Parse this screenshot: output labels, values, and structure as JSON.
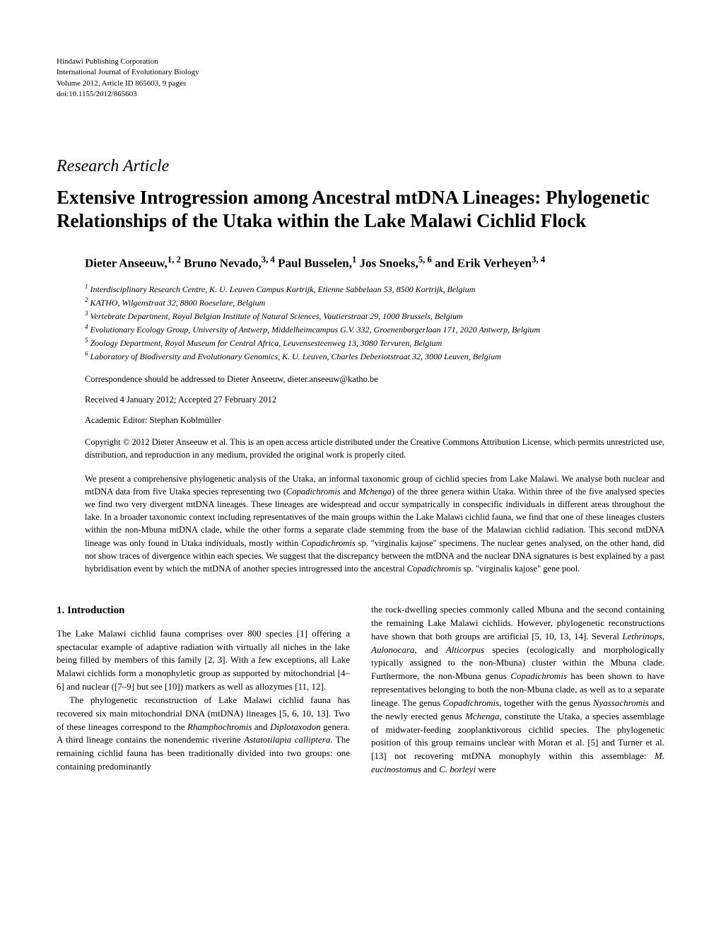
{
  "header": {
    "publisher": "Hindawi Publishing Corporation",
    "journal": "International Journal of Evolutionary Biology",
    "volume": "Volume 2012, Article ID 865603, 9 pages",
    "doi": "doi:10.1155/2012/865603"
  },
  "article_type": "Research Article",
  "title": "Extensive Introgression among Ancestral mtDNA Lineages: Phylogenetic Relationships of the Utaka within the Lake Malawi Cichlid Flock",
  "authors_html": "Dieter Anseeuw,<sup>1, 2</sup> Bruno Nevado,<sup>3, 4</sup> Paul Busselen,<sup>1</sup> Jos Snoeks,<sup>5, 6</sup> and Erik Verheyen<sup>3, 4</sup>",
  "affiliations": [
    "<sup>1</sup> Interdisciplinary Research Centre, K. U. Leuven Campus Kortrijk, Etienne Sabbelaan 53, 8500 Kortrijk, Belgium",
    "<sup>2</sup> KATHO, Wilgenstraat 32, 8800 Roeselare, Belgium",
    "<sup>3</sup> Vertebrate Department, Royal Belgian Institute of Natural Sciences, Vautierstraat 29, 1000 Brussels, Belgium",
    "<sup>4</sup> Evolutionary Ecology Group, University of Antwerp, Middelheimcampus G.V. 332, Groenenborgerlaan 171, 2020 Antwerp, Belgium",
    "<sup>5</sup> Zoology Department, Royal Museum for Central Africa, Leuvensesteenweg 13, 3080 Tervuren, Belgium",
    "<sup>6</sup> Laboratory of Biodiversity and Evolutionary Genomics, K. U. Leuven, Charles Deberiotstraat 32, 3000 Leuven, Belgium"
  ],
  "correspondence": "Correspondence should be addressed to Dieter Anseeuw, dieter.anseeuw@katho.be",
  "received": "Received 4 January 2012; Accepted 27 February 2012",
  "editor": "Academic Editor: Stephan Koblmüller",
  "copyright": "Copyright © 2012 Dieter Anseeuw et al. This is an open access article distributed under the Creative Commons Attribution License, which permits unrestricted use, distribution, and reproduction in any medium, provided the original work is properly cited.",
  "abstract": "We present a comprehensive phylogenetic analysis of the Utaka, an informal taxonomic group of cichlid species from Lake Malawi. We analyse both nuclear and mtDNA data from five Utaka species representing two (<i>Copadichromis</i> and <i>Mchenga</i>) of the three genera within Utaka. Within three of the five analysed species we find two very divergent mtDNA lineages. These lineages are widespread and occur sympatrically in conspecific individuals in different areas throughout the lake. In a broader taxonomic context including representatives of the main groups within the Lake Malawi cichlid fauna, we find that one of these lineages clusters within the non-Mbuna mtDNA clade, while the other forms a separate clade stemming from the base of the Malawian cichlid radiation. This second mtDNA lineage was only found in Utaka individuals, mostly within <i>Copadichromis</i> sp. \"virginalis kajose\" specimens. The nuclear genes analysed, on the other hand, did not show traces of divergence within each species. We suggest that the discrepancy between the mtDNA and the nuclear DNA signatures is best explained by a past hybridisation event by which the mtDNA of another species introgressed into the ancestral <i>Copadichromis</i> sp. \"virginalis kajose\" gene pool.",
  "section_heading": "1. Introduction",
  "column_left": {
    "p1": "The Lake Malawi cichlid fauna comprises over 800 species [1] offering a spectacular example of adaptive radiation with virtually all niches in the lake being filled by members of this family [2, 3]. With a few exceptions, all Lake Malawi cichlids form a monophyletic group as supported by mitochondrial [4–6] and nuclear ([7–9] but see [10]) markers as well as allozymes [11, 12].",
    "p2": "The phylogenetic reconstruction of Lake Malawi cichlid fauna has recovered six main mitochondrial DNA (mtDNA) lineages [5, 6, 10, 13]. Two of these lineages correspond to the <i>Rhamphochromis</i> and <i>Diplotaxodon</i> genera. A third lineage contains the nonendemic riverine <i>Astatotilapia calliptera</i>. The remaining cichlid fauna has been traditionally divided into two groups: one containing predominantly"
  },
  "column_right": {
    "p1": "the rock-dwelling species commonly called Mbuna and the second containing the remaining Lake Malawi cichlids. However, phylogenetic reconstructions have shown that both groups are artificial [5, 10, 13, 14]. Several <i>Lethrinops, Aulonocara,</i> and <i>Alticorpus</i> species (ecologically and morphologically typically assigned to the non-Mbuna) cluster within the Mbuna clade. Furthermore, the non-Mbuna genus <i>Copadichromis</i> has been shown to have representatives belonging to both the non-Mbuna clade, as well as to a separate lineage. The genus <i>Copadichromis</i>, together with the genus <i>Nyassachromis</i> and the newly erected genus <i>Mchenga,</i> constitute the Utaka, a species assemblage of midwater-feeding zooplanktivorous cichlid species. The phylogenetic position of this group remains unclear with Moran et al. [5] and Turner et al. [13] not recovering mtDNA monophyly within this assemblage: <i>M. eucinostomus</i> and <i>C. borleyi</i> were"
  }
}
